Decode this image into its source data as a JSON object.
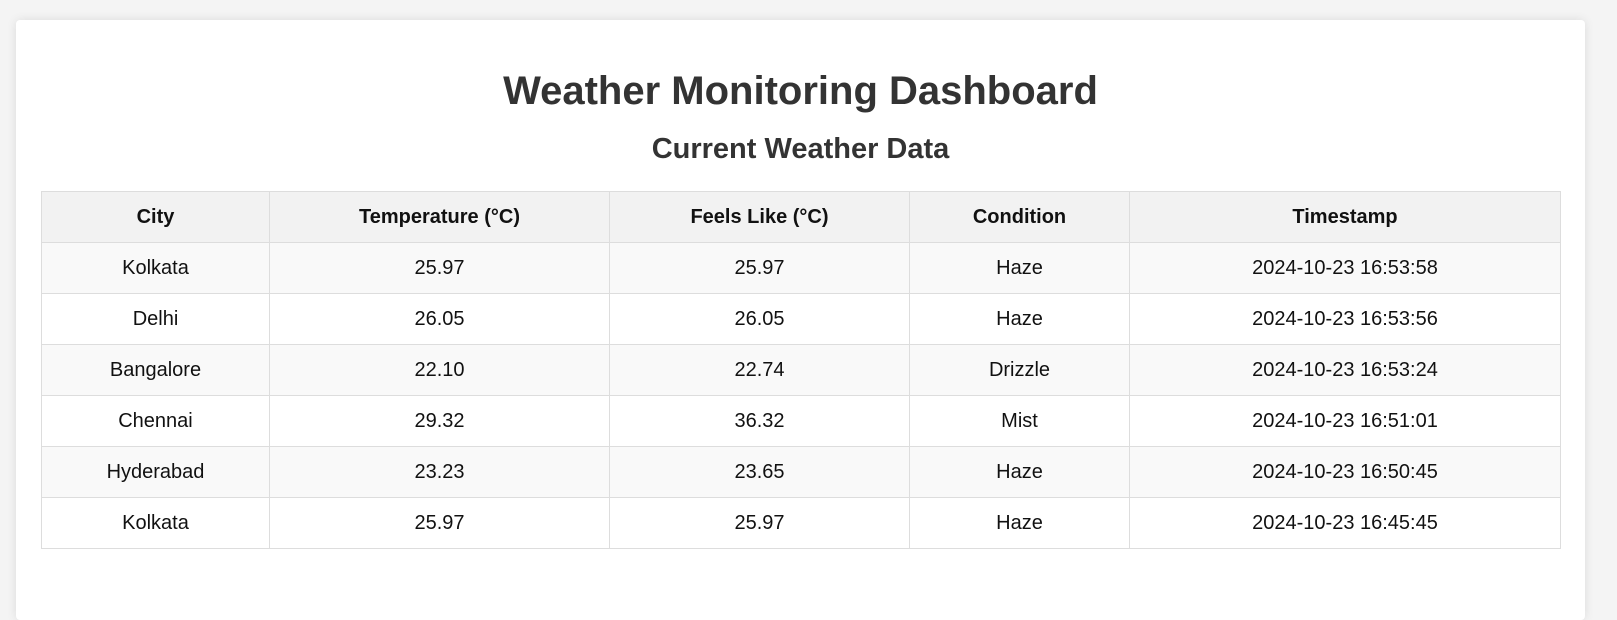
{
  "header": {
    "title": "Weather Monitoring Dashboard",
    "subtitle": "Current Weather Data"
  },
  "table": {
    "columns": [
      "City",
      "Temperature (°C)",
      "Feels Like (°C)",
      "Condition",
      "Timestamp"
    ],
    "rows": [
      [
        "Kolkata",
        "25.97",
        "25.97",
        "Haze",
        "2024-10-23 16:53:58"
      ],
      [
        "Delhi",
        "26.05",
        "26.05",
        "Haze",
        "2024-10-23 16:53:56"
      ],
      [
        "Bangalore",
        "22.10",
        "22.74",
        "Drizzle",
        "2024-10-23 16:53:24"
      ],
      [
        "Chennai",
        "29.32",
        "36.32",
        "Mist",
        "2024-10-23 16:51:01"
      ],
      [
        "Hyderabad",
        "23.23",
        "23.65",
        "Haze",
        "2024-10-23 16:50:45"
      ],
      [
        "Kolkata",
        "25.97",
        "25.97",
        "Haze",
        "2024-10-23 16:45:45"
      ]
    ]
  }
}
